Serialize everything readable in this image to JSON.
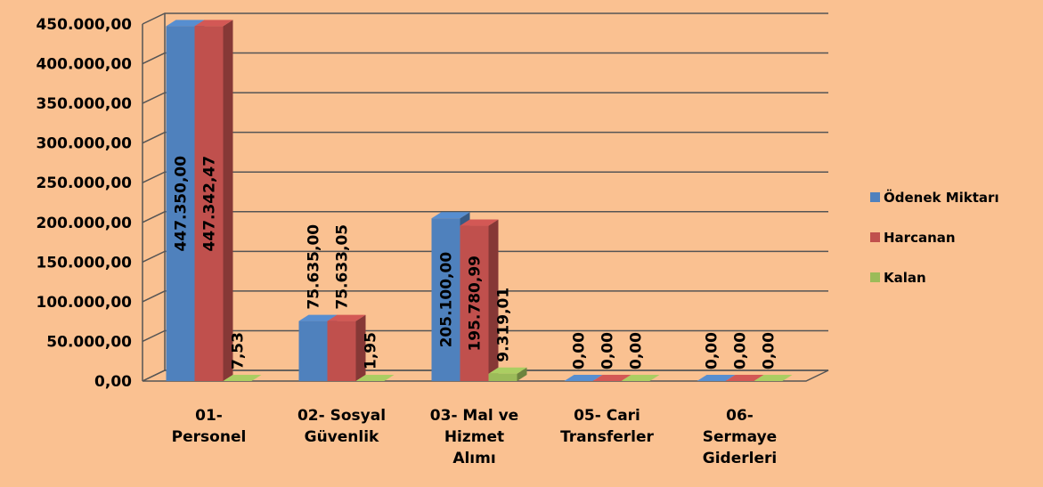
{
  "chart_data": {
    "type": "bar3d",
    "categories": [
      "01-\nPersonel",
      "02- Sosyal\nGüvenlik",
      "03- Mal ve\nHizmet\nAlımı",
      "05- Cari\nTransferler",
      "06-\nSermaye\nGiderleri"
    ],
    "series": [
      {
        "name": "Ödenek Miktarı",
        "color": "#4f81bd",
        "values": [
          447350,
          75635,
          205100,
          0,
          0
        ],
        "value_labels": [
          "447.350,00",
          "75.635,00",
          "205.100,00",
          "0,00",
          "0,00"
        ]
      },
      {
        "name": "Harcanan",
        "color": "#c0504d",
        "values": [
          447342.47,
          75633.05,
          195780.99,
          0,
          0
        ],
        "value_labels": [
          "447.342,47",
          "75.633,05",
          "195.780,99",
          "0,00",
          "0,00"
        ]
      },
      {
        "name": "Kalan",
        "color": "#9bbb59",
        "values": [
          7.53,
          1.95,
          9319.01,
          0,
          0
        ],
        "value_labels": [
          "7,53",
          "1,95",
          "9.319,01",
          "0,00",
          "0,00"
        ]
      }
    ],
    "ylim": [
      0,
      450000
    ],
    "yticks": [
      {
        "value": 0,
        "label": "0,00"
      },
      {
        "value": 50000,
        "label": "50.000,00"
      },
      {
        "value": 100000,
        "label": "100.000,00"
      },
      {
        "value": 150000,
        "label": "150.000,00"
      },
      {
        "value": 200000,
        "label": "200.000,00"
      },
      {
        "value": 250000,
        "label": "250.000,00"
      },
      {
        "value": 300000,
        "label": "300.000,00"
      },
      {
        "value": 350000,
        "label": "350.000,00"
      },
      {
        "value": 400000,
        "label": "400.000,00"
      },
      {
        "value": 450000,
        "label": "450.000,00"
      }
    ],
    "grid": true,
    "legend": "right"
  }
}
